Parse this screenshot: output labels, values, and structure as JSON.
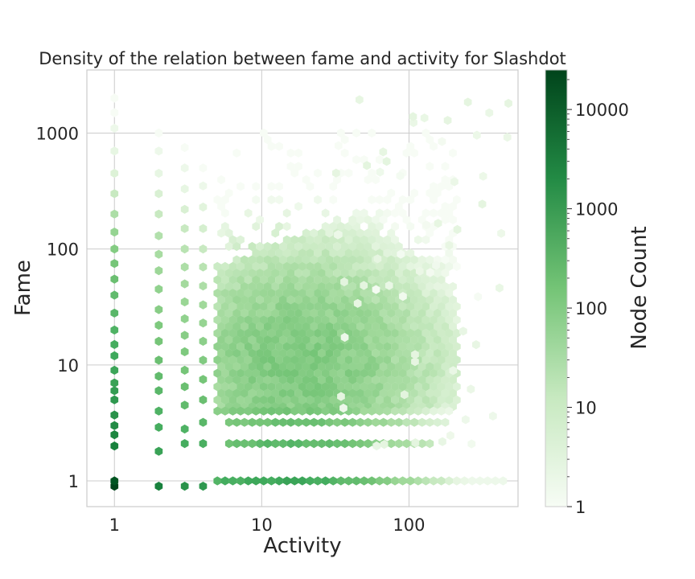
{
  "chart_data": {
    "type": "heatmap",
    "subtype": "hexbin",
    "title": "Density of the relation between fame and activity for Slashdot",
    "xlabel": "Activity",
    "ylabel": "Fame",
    "x_scale": "log",
    "y_scale": "log",
    "xlim": [
      0.65,
      550
    ],
    "ylim": [
      0.6,
      3500
    ],
    "x_ticks": [
      {
        "value": 1,
        "label": "1"
      },
      {
        "value": 10,
        "label": "10"
      },
      {
        "value": 100,
        "label": "100"
      }
    ],
    "y_ticks": [
      {
        "value": 1,
        "label": "1"
      },
      {
        "value": 10,
        "label": "10"
      },
      {
        "value": 100,
        "label": "100"
      },
      {
        "value": 1000,
        "label": "1000"
      }
    ],
    "grid": true,
    "colormap": "Greens",
    "colors": {
      "light": "#f7fcf5",
      "mid_light": "#c7e9c0",
      "mid": "#74c476",
      "mid_dark": "#238b45",
      "dark": "#00441b"
    },
    "colorbar": {
      "label": "Node Count",
      "scale": "log",
      "range": [
        1,
        25000
      ],
      "ticks": [
        {
          "value": 1,
          "label": "1"
        },
        {
          "value": 10,
          "label": "10"
        },
        {
          "value": 100,
          "label": "100"
        },
        {
          "value": 1000,
          "label": "1000"
        },
        {
          "value": 10000,
          "label": "10000"
        }
      ]
    },
    "columns": [
      {
        "x": 1,
        "cells": [
          [
            0.9,
            25000
          ],
          [
            1.0,
            15000
          ],
          [
            2.0,
            3000
          ],
          [
            2.5,
            2500
          ],
          [
            3.0,
            2000
          ],
          [
            3.7,
            1500
          ],
          [
            5.0,
            1200
          ],
          [
            6.0,
            1000
          ],
          [
            7.0,
            800
          ],
          [
            9.0,
            700
          ],
          [
            12.0,
            600
          ],
          [
            15.0,
            500
          ],
          [
            20.0,
            400
          ],
          [
            28.0,
            300
          ],
          [
            40.0,
            250
          ],
          [
            55.0,
            200
          ],
          [
            75.0,
            150
          ],
          [
            100.0,
            100
          ],
          [
            140.0,
            60
          ],
          [
            200.0,
            30
          ],
          [
            300.0,
            12
          ],
          [
            450.0,
            5
          ],
          [
            700.0,
            3
          ],
          [
            1100.0,
            2
          ],
          [
            1500.0,
            1
          ],
          [
            2000.0,
            1
          ]
        ]
      },
      {
        "x": 2,
        "cells": [
          [
            0.9,
            3000
          ],
          [
            1.8,
            800
          ],
          [
            2.9,
            500
          ],
          [
            4.0,
            400
          ],
          [
            6.0,
            300
          ],
          [
            8.0,
            250
          ],
          [
            11.0,
            200
          ],
          [
            16.0,
            150
          ],
          [
            22.0,
            120
          ],
          [
            30.0,
            90
          ],
          [
            45.0,
            70
          ],
          [
            65.0,
            50
          ],
          [
            90.0,
            35
          ],
          [
            130.0,
            25
          ],
          [
            200.0,
            12
          ],
          [
            300.0,
            6
          ],
          [
            450.0,
            3
          ],
          [
            700.0,
            2
          ],
          [
            1000.0,
            1
          ]
        ]
      },
      {
        "x": 3,
        "cells": [
          [
            0.9,
            1500
          ],
          [
            2.1,
            500
          ],
          [
            2.8,
            400
          ],
          [
            4.5,
            250
          ],
          [
            6.5,
            200
          ],
          [
            9.0,
            150
          ],
          [
            13.0,
            120
          ],
          [
            18.0,
            90
          ],
          [
            25.0,
            70
          ],
          [
            35.0,
            55
          ],
          [
            50.0,
            40
          ],
          [
            70.0,
            30
          ],
          [
            100.0,
            20
          ],
          [
            150.0,
            12
          ],
          [
            220.0,
            6
          ],
          [
            330.0,
            3
          ],
          [
            500.0,
            2
          ],
          [
            750.0,
            1
          ]
        ]
      },
      {
        "x": 4,
        "cells": [
          [
            0.9,
            1200
          ],
          [
            2.1,
            450
          ],
          [
            3.2,
            300
          ],
          [
            5.0,
            200
          ],
          [
            7.5,
            150
          ],
          [
            11.0,
            110
          ],
          [
            16.0,
            80
          ],
          [
            23.0,
            60
          ],
          [
            33.0,
            45
          ],
          [
            48.0,
            30
          ],
          [
            70.0,
            20
          ],
          [
            100.0,
            12
          ],
          [
            150.0,
            7
          ],
          [
            230.0,
            4
          ],
          [
            350.0,
            2
          ],
          [
            500.0,
            1
          ]
        ]
      }
    ],
    "bands": [
      {
        "y": 1.0,
        "x_range": [
          5,
          450
        ],
        "peak_x": 12,
        "peak": 700
      },
      {
        "y": 2.1,
        "x_range": [
          6,
          150
        ],
        "peak_x": 15,
        "peak": 300
      },
      {
        "y": 3.2,
        "x_range": [
          6,
          180
        ],
        "peak_x": 15,
        "peak": 200
      },
      {
        "y": 4.0,
        "x_range": [
          5,
          200
        ],
        "peak_x": 14,
        "peak": 150
      }
    ],
    "cloud": {
      "x_range": [
        5,
        220
      ],
      "y_range": [
        4,
        1000
      ],
      "center_x": 18,
      "center_y": 10,
      "peak": 120
    }
  }
}
